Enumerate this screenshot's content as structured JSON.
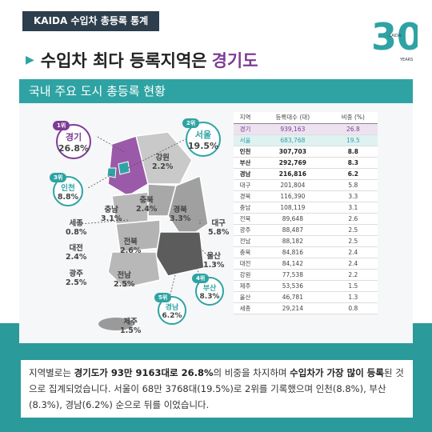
{
  "tag": "KAIDA 수입차 총등록 통계",
  "logo": {
    "digits": "30",
    "brand": "KAIDA",
    "years": "YEARS"
  },
  "headline": {
    "prefix": "수입차 최다 등록지역은",
    "highlight": "경기도"
  },
  "subtitle": "국내 주요 도시 총등록 현황",
  "table": {
    "headers": [
      "지역",
      "등록대수 (대)",
      "비중 (%)"
    ],
    "rows": [
      [
        "경기",
        "939,163",
        "26.8"
      ],
      [
        "서울",
        "683,768",
        "19.5"
      ],
      [
        "인천",
        "307,703",
        "8.8"
      ],
      [
        "부산",
        "292,769",
        "8.3"
      ],
      [
        "경남",
        "216,816",
        "6.2"
      ],
      [
        "대구",
        "201,804",
        "5.8"
      ],
      [
        "경북",
        "116,390",
        "3.3"
      ],
      [
        "충남",
        "108,119",
        "3.1"
      ],
      [
        "전북",
        "89,648",
        "2.6"
      ],
      [
        "광주",
        "88,487",
        "2.5"
      ],
      [
        "전남",
        "88,182",
        "2.5"
      ],
      [
        "충북",
        "84,816",
        "2.4"
      ],
      [
        "대전",
        "84,142",
        "2.4"
      ],
      [
        "강원",
        "77,538",
        "2.2"
      ],
      [
        "제주",
        "53,536",
        "1.5"
      ],
      [
        "울산",
        "46,781",
        "1.3"
      ],
      [
        "세종",
        "29,214",
        "0.8"
      ]
    ]
  },
  "ranks": [
    {
      "rank": "1위",
      "name": "경기",
      "pct": "26.8%"
    },
    {
      "rank": "2위",
      "name": "서울",
      "pct": "19.5%"
    },
    {
      "rank": "3위",
      "name": "인천",
      "pct": "8.8%"
    },
    {
      "rank": "4위",
      "name": "부산",
      "pct": "8.3%"
    },
    {
      "rank": "5위",
      "name": "경남",
      "pct": "6.2%"
    }
  ],
  "map_labels": [
    {
      "name": "강원",
      "pct": "2.2%"
    },
    {
      "name": "충북",
      "pct": "2.4%"
    },
    {
      "name": "충남",
      "pct": "3.1%"
    },
    {
      "name": "경북",
      "pct": "3.3%"
    },
    {
      "name": "세종",
      "pct": "0.8%"
    },
    {
      "name": "대구",
      "pct": "5.8%"
    },
    {
      "name": "전북",
      "pct": "2.6%"
    },
    {
      "name": "대전",
      "pct": "2.4%"
    },
    {
      "name": "울산",
      "pct": "1.3%"
    },
    {
      "name": "광주",
      "pct": "2.5%"
    },
    {
      "name": "전남",
      "pct": "2.5%"
    },
    {
      "name": "제주",
      "pct": "1.5%"
    }
  ],
  "description": {
    "p1": "지역별로는 ",
    "b1": "경기도가 93만 9163대로 26.8%",
    "p2": "의 비중을 차지하며 ",
    "b2": "수입차가 가장 많이 등록",
    "p3": "된 것으로 집계되었습니다. 서울이 68만 3768대(19.5%)로 2위를 기록했으며 인천(8.8%), 부산(8.3%), 경남(6.2%) 순으로 뒤를 이었습니다."
  },
  "colors": {
    "teal": "#2fa3a3",
    "purple": "#7d3b96",
    "dark": "#2d3e4c"
  }
}
